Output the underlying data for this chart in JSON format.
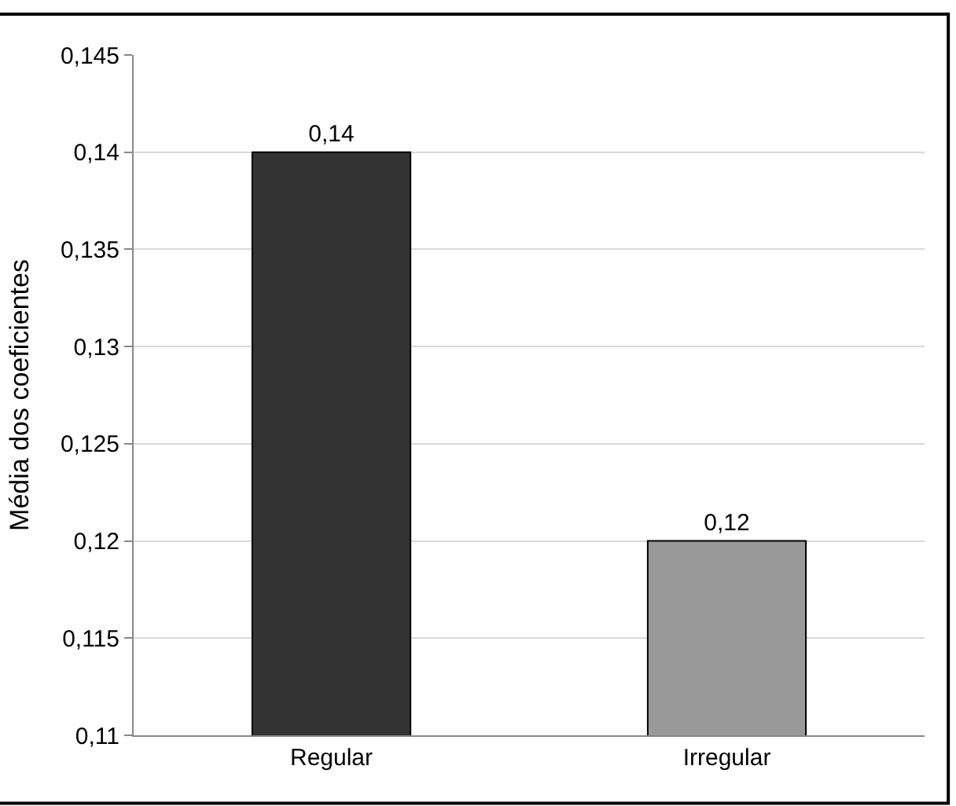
{
  "chart_data": {
    "type": "bar",
    "ylabel": "Média dos coeficientes",
    "categories": [
      "Regular",
      "Irregular"
    ],
    "values": [
      0.14,
      0.12
    ],
    "colors": [
      "#333333",
      "#999999"
    ],
    "value_labels": [
      "0,14",
      "0,12"
    ],
    "ylim": [
      0.11,
      0.145
    ],
    "yticks": [
      {
        "value": 0.11,
        "label": "0,11"
      },
      {
        "value": 0.115,
        "label": "0,115"
      },
      {
        "value": 0.12,
        "label": "0,12"
      },
      {
        "value": 0.125,
        "label": "0,125"
      },
      {
        "value": 0.13,
        "label": "0,13"
      },
      {
        "value": 0.135,
        "label": "0,135"
      },
      {
        "value": 0.14,
        "label": "0,14"
      },
      {
        "value": 0.145,
        "label": "0,145"
      }
    ],
    "grid": "y",
    "legend": false
  }
}
